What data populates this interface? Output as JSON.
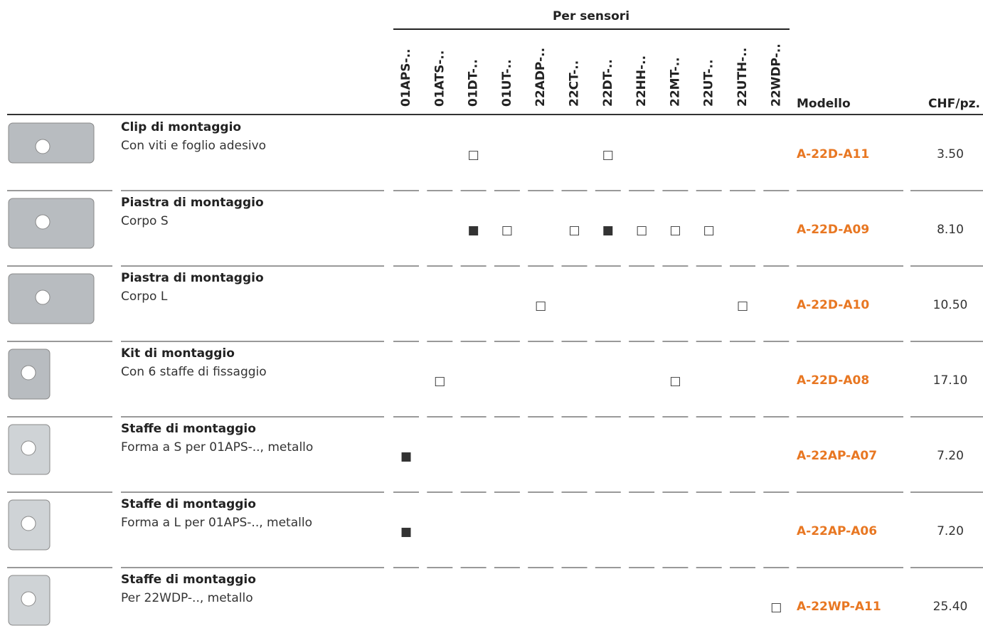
{
  "header": {
    "group": "Per sensori",
    "sensors": [
      "01APS-..",
      "01ATS-..",
      "01DT-..",
      "01UT-..",
      "22ADP-..",
      "22CT-..",
      "22DT-..",
      "22HH-..",
      "22MT-..",
      "22UT-..",
      "22UTH-..",
      "22WDP-.."
    ],
    "model": "Modello",
    "price": "CHF/pz."
  },
  "rows": [
    {
      "title": "Clip di montaggio",
      "subtitle": "Con viti e foglio adesivo",
      "cells": [
        null,
        null,
        "□",
        null,
        null,
        null,
        "□",
        null,
        null,
        null,
        null,
        null
      ],
      "model": "A-22D-A11",
      "price": "3.50"
    },
    {
      "title": "Piastra di montaggio",
      "subtitle": "Corpo S",
      "cells": [
        null,
        null,
        "■",
        "□",
        null,
        "□",
        "■",
        "□",
        "□",
        "□",
        null,
        null
      ],
      "model": "A-22D-A09",
      "price": "8.10"
    },
    {
      "title": "Piastra di montaggio",
      "subtitle": "Corpo L",
      "cells": [
        null,
        null,
        null,
        null,
        "□",
        null,
        null,
        null,
        null,
        null,
        "□",
        null
      ],
      "model": "A-22D-A10",
      "price": "10.50"
    },
    {
      "title": "Kit di montaggio",
      "subtitle": "Con 6 staffe di fissaggio",
      "cells": [
        null,
        "□",
        null,
        null,
        null,
        null,
        null,
        null,
        "□",
        null,
        null,
        null
      ],
      "model": "A-22D-A08",
      "price": "17.10"
    },
    {
      "title": "Staffe di montaggio",
      "subtitle": "Forma a S per 01APS-.., metallo",
      "cells": [
        "■",
        null,
        null,
        null,
        null,
        null,
        null,
        null,
        null,
        null,
        null,
        null
      ],
      "model": "A-22AP-A07",
      "price": "7.20"
    },
    {
      "title": "Staffe di montaggio",
      "subtitle": "Forma a L per 01APS-.., metallo",
      "cells": [
        "■",
        null,
        null,
        null,
        null,
        null,
        null,
        null,
        null,
        null,
        null,
        null
      ],
      "model": "A-22AP-A06",
      "price": "7.20"
    },
    {
      "title": "Staffe di montaggio",
      "subtitle": "Per 22WDP-.., metallo",
      "cells": [
        null,
        null,
        null,
        null,
        null,
        null,
        null,
        null,
        null,
        null,
        null,
        "□"
      ],
      "model": "A-22WP-A11",
      "price": "25.40"
    }
  ]
}
